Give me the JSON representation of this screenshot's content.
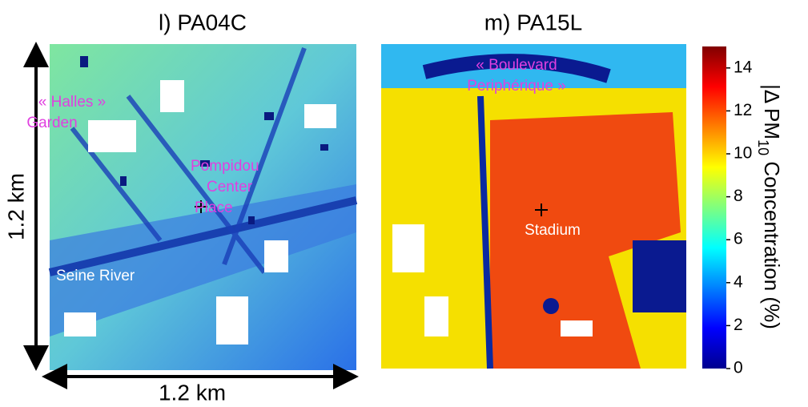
{
  "panels": [
    {
      "title": "l) PA04C",
      "annotations": [
        {
          "lines": [
            "« Halles »",
            "Garden"
          ]
        },
        {
          "lines": [
            "Pompidou",
            "Center",
            "Place"
          ]
        },
        {
          "lines": [
            "Seine River"
          ]
        }
      ]
    },
    {
      "title": "m) PA15L",
      "annotations": [
        {
          "lines": [
            "« Boulevard",
            "Periphérique »"
          ]
        },
        {
          "lines": [
            "Stadium"
          ]
        }
      ]
    }
  ],
  "scale": {
    "vertical": "1.2 km",
    "horizontal": "1.2 km"
  },
  "colorbar": {
    "label": [
      "|Δ PM",
      "10",
      " Concentration (%)"
    ],
    "lim": [
      0,
      15
    ],
    "ticks": [
      0,
      2,
      4,
      6,
      8,
      10,
      12,
      14
    ]
  }
}
